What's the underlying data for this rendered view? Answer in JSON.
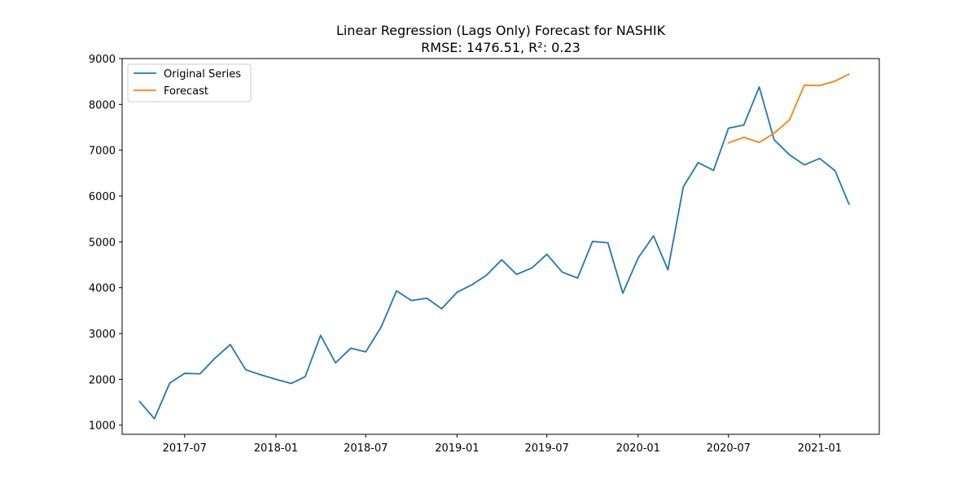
{
  "chart_data": {
    "type": "line",
    "title": "Linear Regression (Lags Only) Forecast for NASHIK",
    "subtitle": "RMSE: 1476.51, R²: 0.23",
    "xlabel": "",
    "ylabel": "",
    "xlim": [
      "2017-02-25",
      "2021-05-01"
    ],
    "ylim": [
      800,
      9000
    ],
    "yticks": [
      1000,
      2000,
      3000,
      4000,
      5000,
      6000,
      7000,
      8000,
      9000
    ],
    "xticks": [
      "2017-07",
      "2018-01",
      "2018-07",
      "2019-01",
      "2019-07",
      "2020-01",
      "2020-07",
      "2021-01"
    ],
    "grid": false,
    "legend_position": "upper left",
    "series": [
      {
        "name": "Original Series",
        "color": "#1f77b4",
        "x": [
          "2017-04",
          "2017-05",
          "2017-06",
          "2017-07",
          "2017-08",
          "2017-09",
          "2017-10",
          "2017-11",
          "2017-12",
          "2018-01",
          "2018-02",
          "2018-03",
          "2018-04",
          "2018-05",
          "2018-06",
          "2018-07",
          "2018-08",
          "2018-09",
          "2018-10",
          "2018-11",
          "2018-12",
          "2019-01",
          "2019-02",
          "2019-03",
          "2019-04",
          "2019-05",
          "2019-06",
          "2019-07",
          "2019-08",
          "2019-09",
          "2019-10",
          "2019-11",
          "2019-12",
          "2020-01",
          "2020-02",
          "2020-03",
          "2020-04",
          "2020-05",
          "2020-06",
          "2020-07",
          "2020-08",
          "2020-09",
          "2020-10",
          "2020-11",
          "2020-12",
          "2021-01",
          "2021-02",
          "2021-03"
        ],
        "values": [
          1520,
          1140,
          1920,
          2130,
          2120,
          2470,
          2760,
          2210,
          2100,
          2000,
          1910,
          2060,
          2960,
          2360,
          2680,
          2600,
          3140,
          3930,
          3720,
          3770,
          3540,
          3900,
          4070,
          4270,
          4610,
          4290,
          4430,
          4730,
          4340,
          4210,
          5010,
          4980,
          3880,
          4650,
          5130,
          4390,
          6200,
          6730,
          6560,
          7480,
          7550,
          8380,
          7230,
          6900,
          6680,
          6820,
          6550,
          5820
        ]
      },
      {
        "name": "Forecast",
        "color": "#ff7f0e",
        "x": [
          "2020-07",
          "2020-08",
          "2020-09",
          "2020-10",
          "2020-11",
          "2020-12",
          "2021-01",
          "2021-02",
          "2021-03"
        ],
        "values": [
          7160,
          7280,
          7170,
          7370,
          7660,
          8420,
          8410,
          8510,
          8660
        ]
      }
    ]
  }
}
